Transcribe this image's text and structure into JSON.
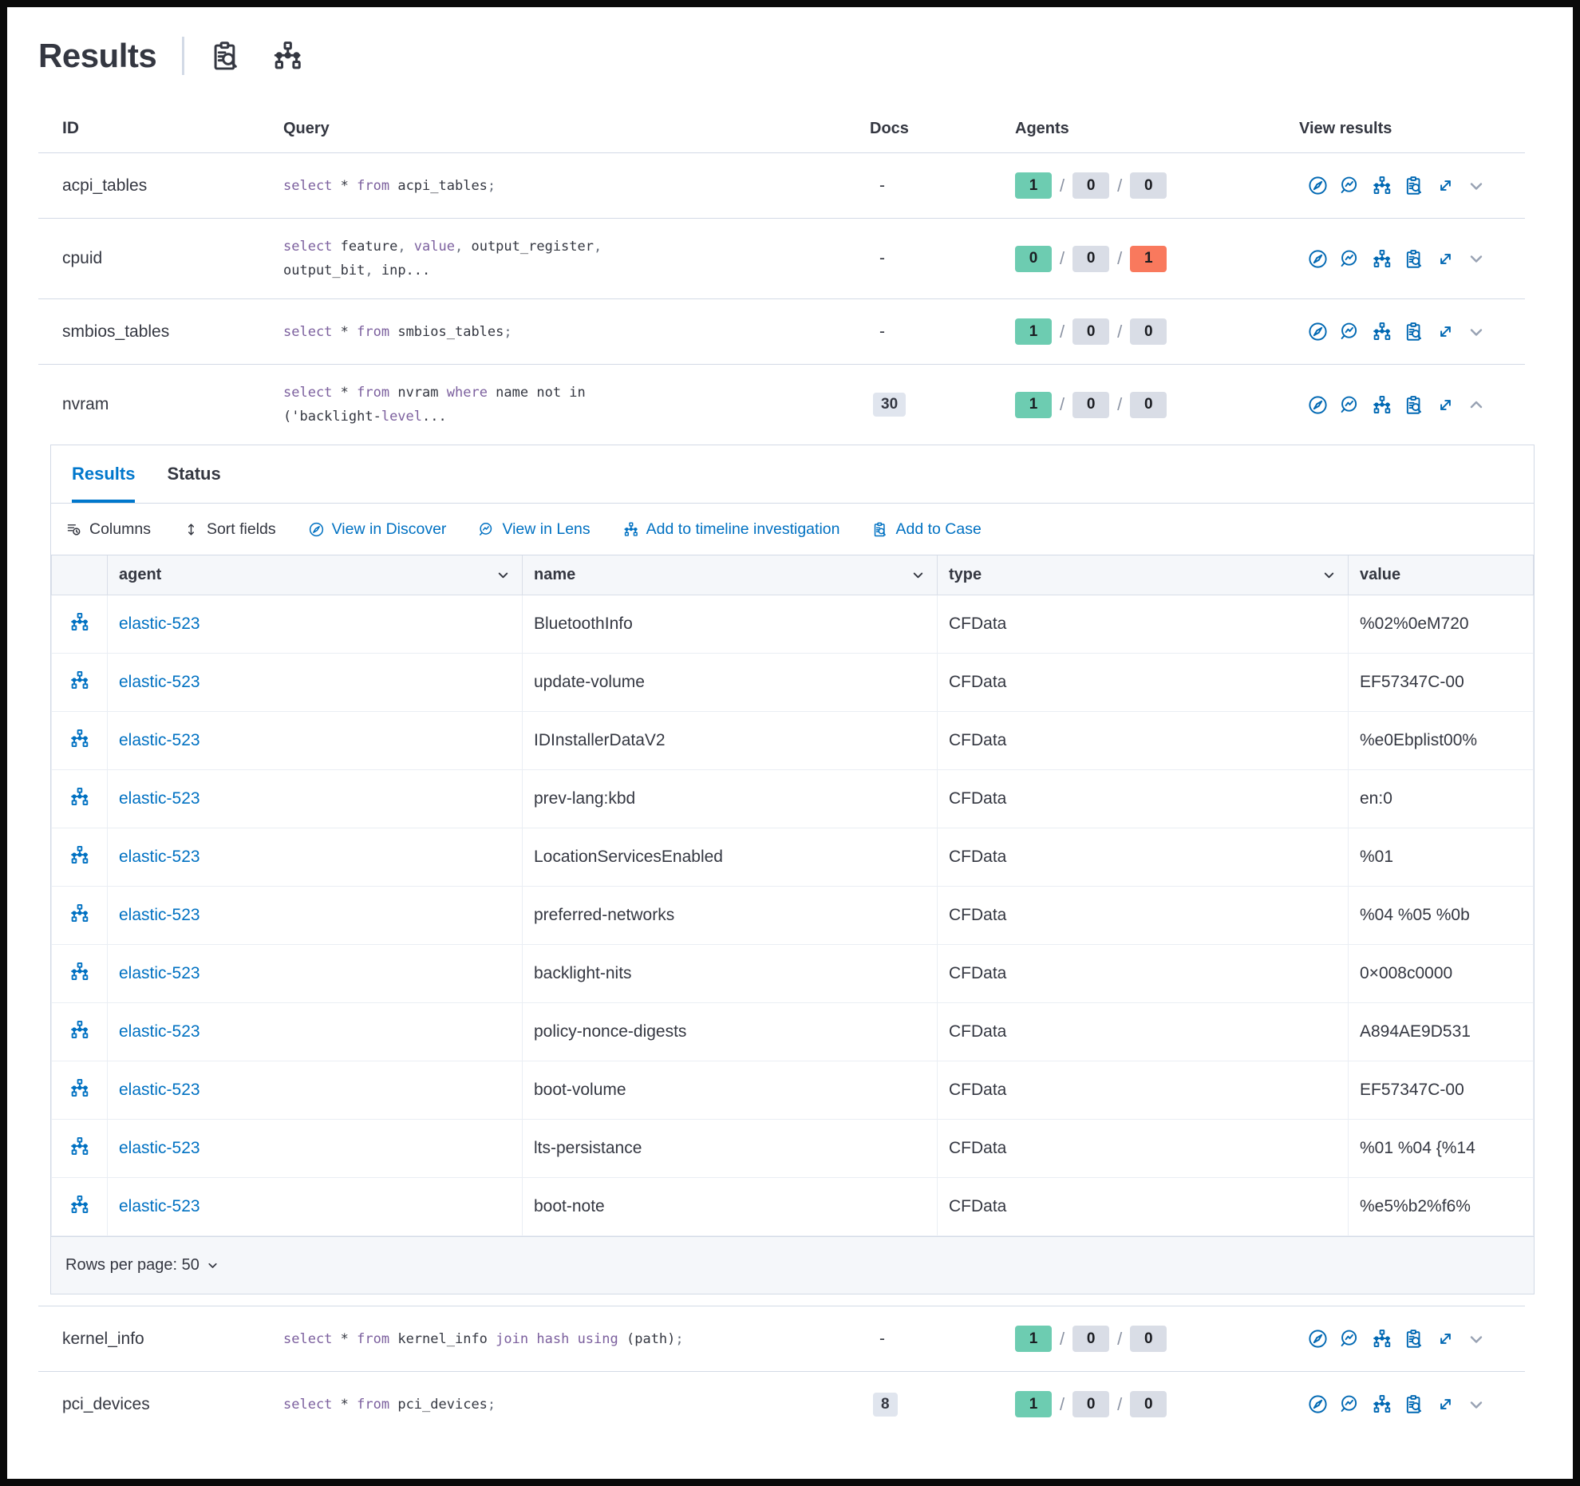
{
  "colors": {
    "accent_blue": "#0071C2",
    "tab_active_blue": "#0077CC",
    "text_primary": "#343741",
    "code_keyword_purple": "#7C609E",
    "badge_green": "#6DCCB1",
    "badge_gray": "#D9DDE6",
    "badge_red": "#F9795D",
    "border_gray": "#D3DAE6"
  },
  "header": {
    "title": "Results",
    "icons": [
      {
        "name": "inspect-results-icon",
        "glyph": "case"
      },
      {
        "name": "timeline-icon",
        "glyph": "timeline"
      }
    ]
  },
  "results_table": {
    "columns": {
      "id": "ID",
      "query": "Query",
      "docs": "Docs",
      "agents": "Agents",
      "view_results": "View results"
    },
    "rows_before_panel": [
      {
        "id": "acpi_tables",
        "docs": "-",
        "docs_is_badge": false,
        "two_line": false,
        "chevron": "down",
        "agents": [
          {
            "value": "1",
            "color": "green"
          },
          {
            "value": "0",
            "color": "gray"
          },
          {
            "value": "0",
            "color": "gray"
          }
        ],
        "query": [
          {
            "t": "select",
            "c": "kw"
          },
          {
            "t": " * ",
            "c": "tx"
          },
          {
            "t": "from",
            "c": "kw"
          },
          {
            "t": " acpi_tables",
            "c": "tx"
          },
          {
            "t": ";",
            "c": "pu"
          }
        ]
      },
      {
        "id": "cpuid",
        "docs": "-",
        "docs_is_badge": false,
        "two_line": true,
        "chevron": "down",
        "agents": [
          {
            "value": "0",
            "color": "green"
          },
          {
            "value": "0",
            "color": "gray"
          },
          {
            "value": "1",
            "color": "red"
          }
        ],
        "query": [
          {
            "t": "select",
            "c": "kw"
          },
          {
            "t": " feature",
            "c": "tx"
          },
          {
            "t": ", ",
            "c": "pu"
          },
          {
            "t": "value",
            "c": "kw"
          },
          {
            "t": ", ",
            "c": "pu"
          },
          {
            "t": "output_register",
            "c": "tx"
          },
          {
            "t": ",\n",
            "c": "pu"
          },
          {
            "t": "output_bit",
            "c": "tx"
          },
          {
            "t": ", ",
            "c": "pu"
          },
          {
            "t": "inp...",
            "c": "tx"
          }
        ]
      },
      {
        "id": "smbios_tables",
        "docs": "-",
        "docs_is_badge": false,
        "two_line": false,
        "chevron": "down",
        "agents": [
          {
            "value": "1",
            "color": "green"
          },
          {
            "value": "0",
            "color": "gray"
          },
          {
            "value": "0",
            "color": "gray"
          }
        ],
        "query": [
          {
            "t": "select",
            "c": "kw"
          },
          {
            "t": " * ",
            "c": "tx"
          },
          {
            "t": "from",
            "c": "kw"
          },
          {
            "t": " smbios_tables",
            "c": "tx"
          },
          {
            "t": ";",
            "c": "pu"
          }
        ]
      },
      {
        "id": "nvram",
        "docs": "30",
        "docs_is_badge": true,
        "two_line": true,
        "chevron": "up",
        "agents": [
          {
            "value": "1",
            "color": "green"
          },
          {
            "value": "0",
            "color": "gray"
          },
          {
            "value": "0",
            "color": "gray"
          }
        ],
        "query": [
          {
            "t": "select",
            "c": "kw"
          },
          {
            "t": " * ",
            "c": "tx"
          },
          {
            "t": "from",
            "c": "kw"
          },
          {
            "t": " nvram ",
            "c": "tx"
          },
          {
            "t": "where",
            "c": "kw"
          },
          {
            "t": " name not in\n('backlight-",
            "c": "tx"
          },
          {
            "t": "level",
            "c": "kw"
          },
          {
            "t": "...",
            "c": "tx"
          }
        ]
      }
    ],
    "rows_after_panel": [
      {
        "id": "kernel_info",
        "docs": "-",
        "docs_is_badge": false,
        "two_line": false,
        "chevron": "down",
        "agents": [
          {
            "value": "1",
            "color": "green"
          },
          {
            "value": "0",
            "color": "gray"
          },
          {
            "value": "0",
            "color": "gray"
          }
        ],
        "query": [
          {
            "t": "select",
            "c": "kw"
          },
          {
            "t": " * ",
            "c": "tx"
          },
          {
            "t": "from",
            "c": "kw"
          },
          {
            "t": " kernel_info ",
            "c": "tx"
          },
          {
            "t": "join",
            "c": "kw"
          },
          {
            "t": " ",
            "c": "tx"
          },
          {
            "t": "hash",
            "c": "kw"
          },
          {
            "t": " ",
            "c": "tx"
          },
          {
            "t": "using",
            "c": "kw"
          },
          {
            "t": " (path)",
            "c": "tx"
          },
          {
            "t": ";",
            "c": "pu"
          }
        ]
      },
      {
        "id": "pci_devices",
        "docs": "8",
        "docs_is_badge": true,
        "two_line": false,
        "chevron": "down",
        "agents": [
          {
            "value": "1",
            "color": "green"
          },
          {
            "value": "0",
            "color": "gray"
          },
          {
            "value": "0",
            "color": "gray"
          }
        ],
        "query": [
          {
            "t": "select",
            "c": "kw"
          },
          {
            "t": " * ",
            "c": "tx"
          },
          {
            "t": "from",
            "c": "kw"
          },
          {
            "t": " pci_devices",
            "c": "tx"
          },
          {
            "t": ";",
            "c": "pu"
          }
        ]
      }
    ],
    "view_result_actions": [
      "discover",
      "lens",
      "timeline",
      "case",
      "expand"
    ]
  },
  "panel": {
    "tabs": [
      {
        "label": "Results",
        "active": true
      },
      {
        "label": "Status",
        "active": false
      }
    ],
    "toolbar": [
      {
        "label": "Columns",
        "icon": "columns-icon",
        "glyph": "columns",
        "style": "dark"
      },
      {
        "label": "Sort fields",
        "icon": "sort-fields-icon",
        "glyph": "sort",
        "style": "dark"
      },
      {
        "label": "View in Discover",
        "icon": "discover-icon",
        "glyph": "discover",
        "style": "blue"
      },
      {
        "label": "View in Lens",
        "icon": "lens-icon",
        "glyph": "lens",
        "style": "blue"
      },
      {
        "label": "Add to timeline investigation",
        "icon": "timeline-icon",
        "glyph": "timeline",
        "style": "blue"
      },
      {
        "label": "Add to Case",
        "icon": "case-icon",
        "glyph": "case",
        "style": "blue"
      }
    ],
    "table": {
      "columns": [
        "agent",
        "name",
        "type",
        "value"
      ],
      "rows": [
        {
          "agent": "elastic-523",
          "name": "BluetoothInfo",
          "type": "CFData",
          "value": "%02%0eM720"
        },
        {
          "agent": "elastic-523",
          "name": "update-volume",
          "type": "CFData",
          "value": "EF57347C-00"
        },
        {
          "agent": "elastic-523",
          "name": "IDInstallerDataV2",
          "type": "CFData",
          "value": "%e0Ebplist00%"
        },
        {
          "agent": "elastic-523",
          "name": "prev-lang:kbd",
          "type": "CFData",
          "value": "en:0"
        },
        {
          "agent": "elastic-523",
          "name": "LocationServicesEnabled",
          "type": "CFData",
          "value": "%01"
        },
        {
          "agent": "elastic-523",
          "name": "preferred-networks",
          "type": "CFData",
          "value": "%04 %05 %0b"
        },
        {
          "agent": "elastic-523",
          "name": "backlight-nits",
          "type": "CFData",
          "value": "0×008c0000"
        },
        {
          "agent": "elastic-523",
          "name": "policy-nonce-digests",
          "type": "CFData",
          "value": "A894AE9D531"
        },
        {
          "agent": "elastic-523",
          "name": "boot-volume",
          "type": "CFData",
          "value": "EF57347C-00"
        },
        {
          "agent": "elastic-523",
          "name": "lts-persistance",
          "type": "CFData",
          "value": "%01 %04 {%14"
        },
        {
          "agent": "elastic-523",
          "name": "boot-note",
          "type": "CFData",
          "value": "%e5%b2%f6%"
        }
      ]
    },
    "footer": {
      "rows_per_page_label": "Rows per page: 50"
    }
  }
}
